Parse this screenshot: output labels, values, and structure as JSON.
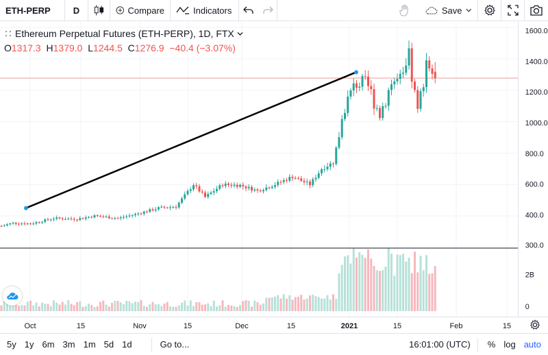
{
  "toolbar": {
    "symbol": "ETH-PERP",
    "interval": "D",
    "compare_label": "Compare",
    "indicators_label": "Indicators",
    "save_label": "Save"
  },
  "legend": {
    "title": "Ethereum Perpetual Futures (ETH-PERP), 1D, FTX",
    "open_key": "O",
    "open": "1317.3",
    "high_key": "H",
    "high": "1379.0",
    "low_key": "L",
    "low": "1244.5",
    "close_key": "C",
    "close": "1276.9",
    "change": "−40.4 (−3.07%)"
  },
  "bottom_bar": {
    "ranges": [
      "5y",
      "1y",
      "6m",
      "3m",
      "1m",
      "5d",
      "1d"
    ],
    "goto_label": "Go to...",
    "time": "16:01:00 (UTC)",
    "percent_label": "%",
    "log_label": "log",
    "auto_label": "auto"
  },
  "colors": {
    "up": "#26a69a",
    "down": "#ef5350",
    "up_volume": "#b7e1d8",
    "down_volume": "#f6b8bd",
    "accent": "#2962ff"
  },
  "chart_data": {
    "type": "candlestick",
    "price_axis": {
      "min": 250,
      "max": 1650,
      "ticks": [
        "1600.0",
        "1400.0",
        "1200.0",
        "1000.0",
        "800.0",
        "600.0",
        "400.0",
        "300.0"
      ]
    },
    "volume_axis": {
      "ticks": [
        "2B",
        "0"
      ]
    },
    "time_ticks": [
      "Oct",
      "15",
      "Nov",
      "15",
      "Dec",
      "15",
      "2021",
      "15",
      "Feb",
      "15"
    ],
    "current_price_line": 1277,
    "trend_line": {
      "start_price": 450,
      "end_price": 1315
    },
    "close_path": [
      {
        "day": 0,
        "close": 335
      },
      {
        "day": 4,
        "close": 355
      },
      {
        "day": 10,
        "close": 350
      },
      {
        "day": 18,
        "close": 385
      },
      {
        "day": 26,
        "close": 380
      },
      {
        "day": 32,
        "close": 400
      },
      {
        "day": 40,
        "close": 385
      },
      {
        "day": 46,
        "close": 410
      },
      {
        "day": 54,
        "close": 450
      },
      {
        "day": 60,
        "close": 460
      },
      {
        "day": 66,
        "close": 600
      },
      {
        "day": 70,
        "close": 520
      },
      {
        "day": 76,
        "close": 600
      },
      {
        "day": 82,
        "close": 595
      },
      {
        "day": 88,
        "close": 560
      },
      {
        "day": 94,
        "close": 600
      },
      {
        "day": 100,
        "close": 650
      },
      {
        "day": 106,
        "close": 600
      },
      {
        "day": 110,
        "close": 700
      },
      {
        "day": 114,
        "close": 740
      },
      {
        "day": 118,
        "close": 1100
      },
      {
        "day": 122,
        "close": 1250
      },
      {
        "day": 126,
        "close": 1220
      },
      {
        "day": 130,
        "close": 1050
      },
      {
        "day": 134,
        "close": 1250
      },
      {
        "day": 138,
        "close": 1260
      },
      {
        "day": 140,
        "close": 1400
      },
      {
        "day": 143,
        "close": 1050
      },
      {
        "day": 146,
        "close": 1400
      },
      {
        "day": 149,
        "close": 1277
      }
    ]
  }
}
